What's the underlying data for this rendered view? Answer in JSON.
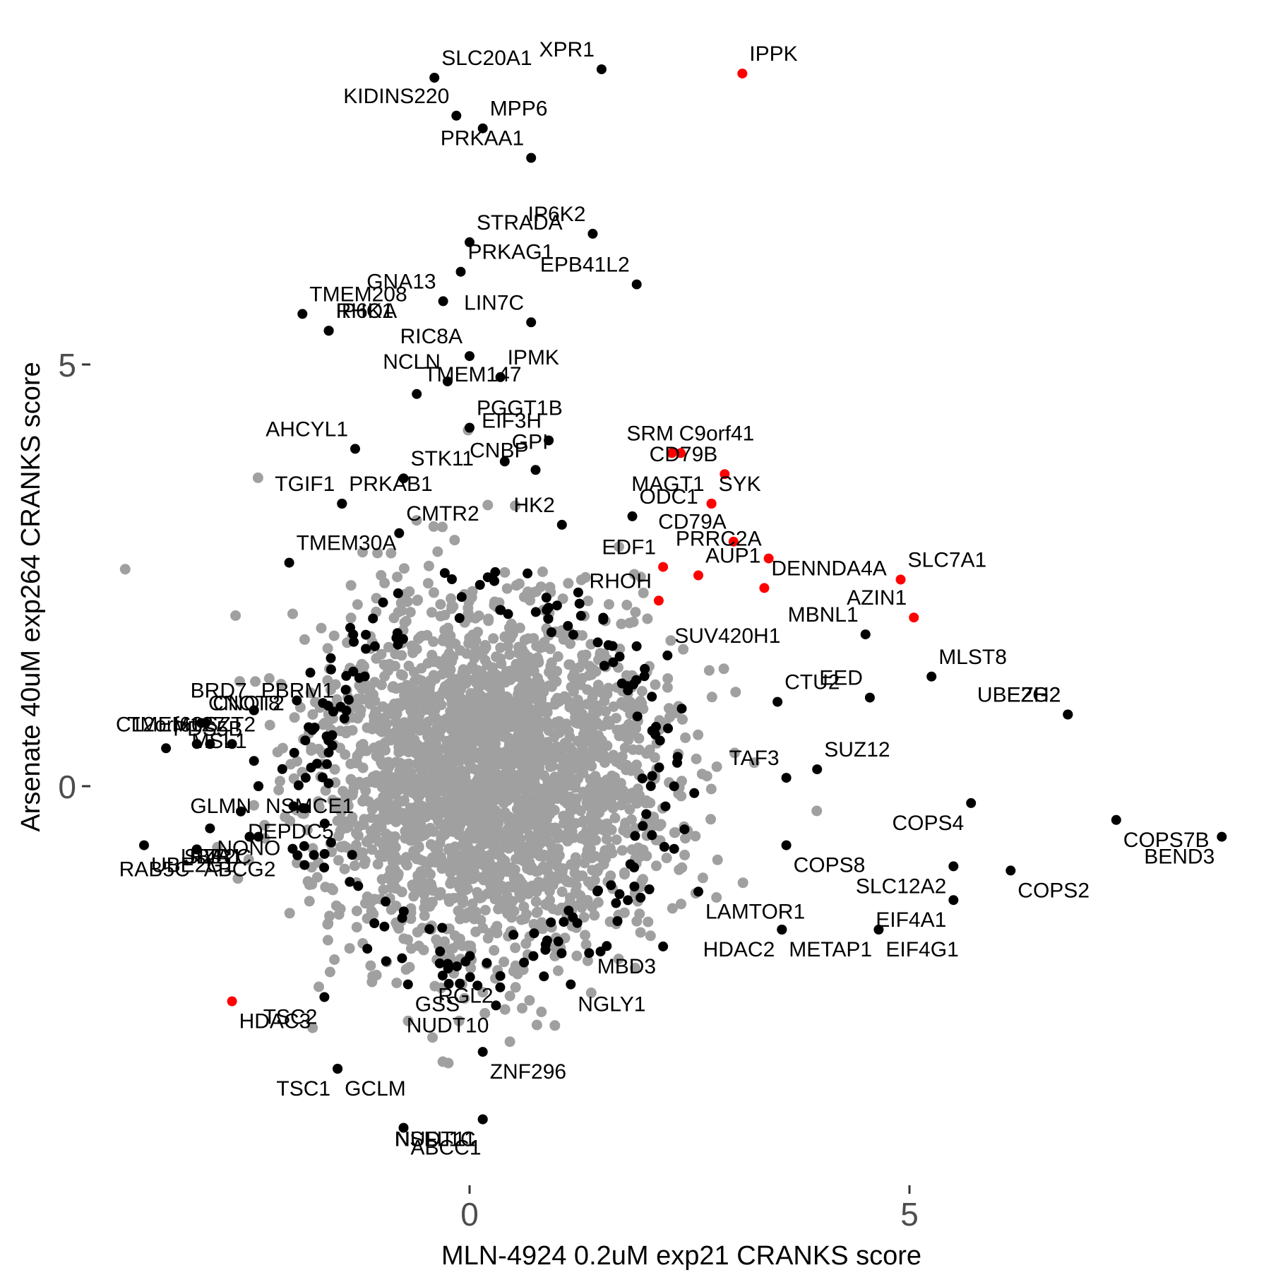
{
  "chart_data": {
    "type": "scatter",
    "xlabel": "MLN-4924 0.2uM exp21 CRANKS score",
    "ylabel": "Arsenate 40uM exp264 CRANKS score",
    "xlim": [
      -4.2,
      8.8
    ],
    "ylim": [
      -4.75,
      9.0
    ],
    "x_ticks": [
      0,
      5
    ],
    "y_ticks": [
      0,
      5
    ],
    "x_tick_labels": [
      "0",
      "5"
    ],
    "y_tick_labels": [
      "0",
      "5"
    ],
    "grid": false,
    "legend": "none",
    "colors": {
      "background_genes": "#a0a0a0",
      "labeled_genes": "#000000",
      "highlighted_genes": "#ff0000",
      "tick_text": "#4d4d4d"
    },
    "background_cloud": {
      "description_note": "",
      "center": [
        0.2,
        0.1
      ],
      "radius_x": 1.75,
      "radius_y": 1.85
    },
    "labeled_points": [
      {
        "gene": "SLC20A1",
        "x": -0.4,
        "y": 8.4,
        "color": "black"
      },
      {
        "gene": "XPR1",
        "x": 1.5,
        "y": 8.5,
        "color": "black"
      },
      {
        "gene": "IPPK",
        "x": 3.1,
        "y": 8.45,
        "color": "red"
      },
      {
        "gene": "KIDINS220",
        "x": -0.15,
        "y": 7.95,
        "color": "black"
      },
      {
        "gene": "MPP6",
        "x": 0.15,
        "y": 7.8,
        "color": "black"
      },
      {
        "gene": "PRKAA1",
        "x": 0.7,
        "y": 7.45,
        "color": "black"
      },
      {
        "gene": "STRADA",
        "x": 0.0,
        "y": 6.45,
        "color": "black"
      },
      {
        "gene": "IP6K2",
        "x": 1.4,
        "y": 6.55,
        "color": "black"
      },
      {
        "gene": "PRKAG1",
        "x": -0.1,
        "y": 6.1,
        "color": "black"
      },
      {
        "gene": "EPB41L2",
        "x": 1.9,
        "y": 5.95,
        "color": "black"
      },
      {
        "gene": "TMEM208",
        "x": -1.9,
        "y": 5.6,
        "color": "black"
      },
      {
        "gene": "GNA13",
        "x": -0.3,
        "y": 5.75,
        "color": "black"
      },
      {
        "gene": "IP6K1",
        "x": -1.6,
        "y": 5.4,
        "color": "black"
      },
      {
        "gene": "LIN7C",
        "x": 0.7,
        "y": 5.5,
        "color": "black"
      },
      {
        "gene": "RHOA",
        "x": -1.6,
        "y": 5.4,
        "color": "black"
      },
      {
        "gene": "RIC8A",
        "x": 0.0,
        "y": 5.1,
        "color": "black"
      },
      {
        "gene": "IPMK",
        "x": 0.35,
        "y": 4.85,
        "color": "black"
      },
      {
        "gene": "EIF3H",
        "x": 0.9,
        "y": 4.1,
        "color": "black"
      },
      {
        "gene": "TMEM147",
        "x": -0.6,
        "y": 4.65,
        "color": "black"
      },
      {
        "gene": "NCLN",
        "x": -0.25,
        "y": 4.8,
        "color": "black"
      },
      {
        "gene": "PGGT1B",
        "x": 0.0,
        "y": 4.25,
        "color": "black"
      },
      {
        "gene": "SRM",
        "x": 2.4,
        "y": 3.95,
        "color": "red"
      },
      {
        "gene": "C9orf41",
        "x": 2.3,
        "y": 3.95,
        "color": "red"
      },
      {
        "gene": "AHCYL1",
        "x": -1.3,
        "y": 4.0,
        "color": "black"
      },
      {
        "gene": "GPI",
        "x": 0.4,
        "y": 3.85,
        "color": "black"
      },
      {
        "gene": "CD79B",
        "x": 2.9,
        "y": 3.7,
        "color": "red"
      },
      {
        "gene": "STK11",
        "x": -0.75,
        "y": 3.65,
        "color": "black"
      },
      {
        "gene": "CNBP",
        "x": 0.75,
        "y": 3.75,
        "color": "black"
      },
      {
        "gene": "PRKAB1",
        "x": -1.45,
        "y": 3.35,
        "color": "black"
      },
      {
        "gene": "MAGT1",
        "x": 2.75,
        "y": 3.35,
        "color": "red"
      },
      {
        "gene": "SYK",
        "x": 2.75,
        "y": 3.35,
        "color": "red"
      },
      {
        "gene": "TGIF1",
        "x": -1.45,
        "y": 3.35,
        "color": "black"
      },
      {
        "gene": "CMTR2",
        "x": -0.8,
        "y": 3.0,
        "color": "black"
      },
      {
        "gene": "HK2",
        "x": 1.05,
        "y": 3.1,
        "color": "black"
      },
      {
        "gene": "ODC1",
        "x": 1.85,
        "y": 3.2,
        "color": "black"
      },
      {
        "gene": "CD79A",
        "x": 3.0,
        "y": 2.9,
        "color": "red"
      },
      {
        "gene": "SLC7A1",
        "x": 4.9,
        "y": 2.45,
        "color": "red"
      },
      {
        "gene": "EDF1",
        "x": 2.2,
        "y": 2.6,
        "color": "red"
      },
      {
        "gene": "AUP1",
        "x": 2.6,
        "y": 2.5,
        "color": "red"
      },
      {
        "gene": "PRRC2A",
        "x": 3.4,
        "y": 2.7,
        "color": "red"
      },
      {
        "gene": "TMEM30A",
        "x": -2.05,
        "y": 2.65,
        "color": "black"
      },
      {
        "gene": "RHOH",
        "x": 2.15,
        "y": 2.2,
        "color": "red"
      },
      {
        "gene": "DENNDA4A",
        "x": 3.35,
        "y": 2.35,
        "color": "red"
      },
      {
        "gene": "AZIN1",
        "x": 5.05,
        "y": 2.0,
        "color": "red"
      },
      {
        "gene": "CNOT2",
        "x": -3.0,
        "y": 0.75,
        "color": "black"
      },
      {
        "gene": "TMEM127",
        "x": -2.7,
        "y": 0.5,
        "color": "black"
      },
      {
        "gene": "SUV420H1",
        "x": 2.25,
        "y": 1.55,
        "color": "black"
      },
      {
        "gene": "MBNL1",
        "x": 4.5,
        "y": 1.8,
        "color": "black"
      },
      {
        "gene": "SZT2",
        "x": -3.1,
        "y": 0.5,
        "color": "black"
      },
      {
        "gene": "C12orf66",
        "x": -2.95,
        "y": 0.5,
        "color": "black"
      },
      {
        "gene": "PBRM1",
        "x": -2.45,
        "y": 0.9,
        "color": "black"
      },
      {
        "gene": "EED",
        "x": 4.55,
        "y": 1.05,
        "color": "black"
      },
      {
        "gene": "MLST8",
        "x": 5.25,
        "y": 1.3,
        "color": "black"
      },
      {
        "gene": "BRD7",
        "x": -2.45,
        "y": 0.9,
        "color": "black"
      },
      {
        "gene": "CTU2",
        "x": 3.5,
        "y": 1.0,
        "color": "black"
      },
      {
        "gene": "UBE2G2",
        "x": 6.8,
        "y": 0.85,
        "color": "black"
      },
      {
        "gene": "CNOT8",
        "x": -3.05,
        "y": 0.75,
        "color": "black"
      },
      {
        "gene": "EZH2",
        "x": 6.8,
        "y": 0.85,
        "color": "black"
      },
      {
        "gene": "PDS5B",
        "x": -3.45,
        "y": 0.45,
        "color": "black"
      },
      {
        "gene": "MSL1",
        "x": -2.45,
        "y": 0.3,
        "color": "black"
      },
      {
        "gene": "SUZ12",
        "x": 3.95,
        "y": 0.2,
        "color": "black"
      },
      {
        "gene": "COPS4",
        "x": 5.7,
        "y": -0.2,
        "color": "black"
      },
      {
        "gene": "COPS7B",
        "x": 7.35,
        "y": -0.4,
        "color": "black"
      },
      {
        "gene": "TAF3",
        "x": 3.6,
        "y": 0.1,
        "color": "black"
      },
      {
        "gene": "DEPDC5",
        "x": -2.6,
        "y": -0.3,
        "color": "black"
      },
      {
        "gene": "GLMN",
        "x": -2.4,
        "y": 0.0,
        "color": "black"
      },
      {
        "gene": "NSMCE1",
        "x": -2.4,
        "y": 0.0,
        "color": "black"
      },
      {
        "gene": "BEND3",
        "x": 8.55,
        "y": -0.6,
        "color": "black"
      },
      {
        "gene": "UBE2G1",
        "x": -3.7,
        "y": -0.7,
        "color": "black"
      },
      {
        "gene": "SLC12A2",
        "x": 5.5,
        "y": -0.95,
        "color": "black"
      },
      {
        "gene": "COPS2",
        "x": 6.15,
        "y": -1.0,
        "color": "black"
      },
      {
        "gene": "UBE2C",
        "x": -2.4,
        "y": -0.6,
        "color": "black"
      },
      {
        "gene": "COPS8",
        "x": 3.6,
        "y": -0.7,
        "color": "black"
      },
      {
        "gene": "RAB5C",
        "x": -3.1,
        "y": -0.75,
        "color": "black"
      },
      {
        "gene": "NONO",
        "x": -2.95,
        "y": -0.5,
        "color": "black"
      },
      {
        "gene": "SIVA1",
        "x": -2.5,
        "y": -0.6,
        "color": "black"
      },
      {
        "gene": "LAMTOR1",
        "x": 2.6,
        "y": -1.25,
        "color": "black"
      },
      {
        "gene": "EIF4A1",
        "x": 5.5,
        "y": -1.35,
        "color": "black"
      },
      {
        "gene": "ABCG2",
        "x": -3.1,
        "y": -0.75,
        "color": "black"
      },
      {
        "gene": "FZR1",
        "x": -2.5,
        "y": -0.6,
        "color": "black"
      },
      {
        "gene": "NGLY1",
        "x": 1.15,
        "y": -2.35,
        "color": "black"
      },
      {
        "gene": "HDAC2",
        "x": 3.55,
        "y": -1.7,
        "color": "black"
      },
      {
        "gene": "EIF4G1",
        "x": 4.65,
        "y": -1.7,
        "color": "black"
      },
      {
        "gene": "MBD3",
        "x": 2.2,
        "y": -1.9,
        "color": "black"
      },
      {
        "gene": "METAP1",
        "x": 3.55,
        "y": -1.7,
        "color": "black"
      },
      {
        "gene": "TSC2",
        "x": -1.65,
        "y": -2.5,
        "color": "black"
      },
      {
        "gene": "GSS",
        "x": -0.7,
        "y": -2.35,
        "color": "black"
      },
      {
        "gene": "RGL2",
        "x": 0.35,
        "y": -2.25,
        "color": "black"
      },
      {
        "gene": "HDAC3",
        "x": -2.7,
        "y": -2.55,
        "color": "red"
      },
      {
        "gene": "NUDT10",
        "x": 0.3,
        "y": -2.6,
        "color": "black"
      },
      {
        "gene": "ZNF296",
        "x": 0.15,
        "y": -3.15,
        "color": "black"
      },
      {
        "gene": "TSC1",
        "x": -1.5,
        "y": -3.35,
        "color": "black"
      },
      {
        "gene": "GCLM",
        "x": -1.5,
        "y": -3.35,
        "color": "black"
      },
      {
        "gene": "NSFL1C",
        "x": 0.15,
        "y": -3.95,
        "color": "black"
      },
      {
        "gene": "ABCC1",
        "x": -0.75,
        "y": -4.05,
        "color": "black"
      },
      {
        "gene": "NUDT11",
        "x": 0.15,
        "y": -3.95,
        "color": "black"
      }
    ]
  }
}
